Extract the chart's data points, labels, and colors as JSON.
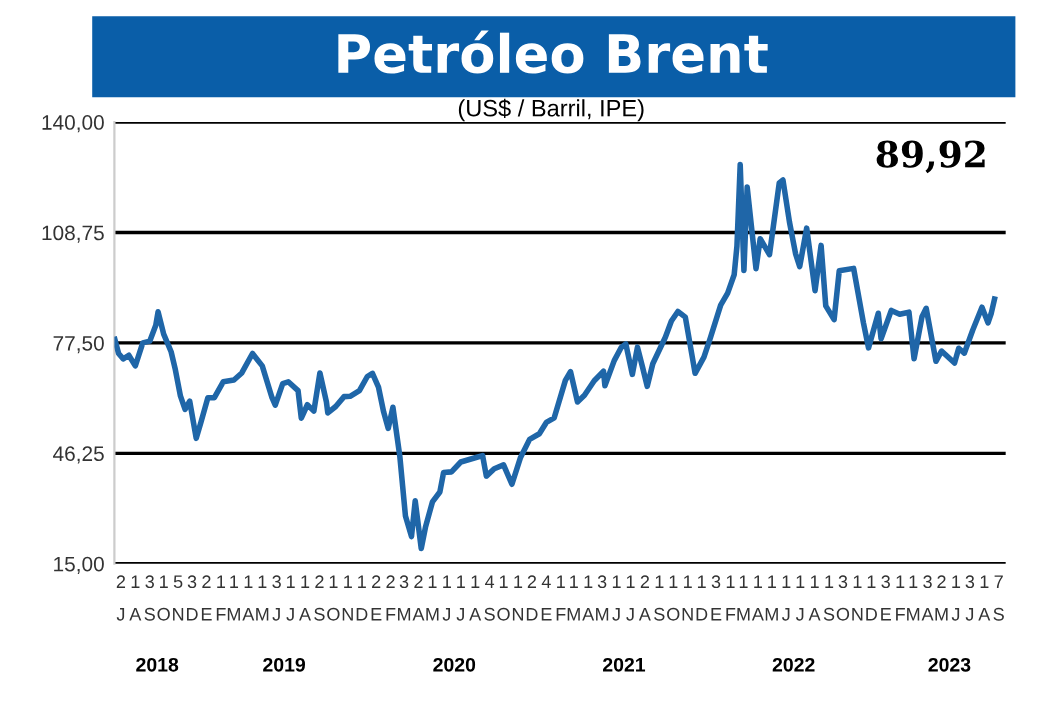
{
  "chart_data": {
    "type": "line",
    "title": "Petróleo Brent",
    "subtitle": "(US$ / Barril, IPE)",
    "annotations": [
      "89,92"
    ],
    "xlim": [
      "2018-07-01",
      "2023-09-30"
    ],
    "ylim": [
      15,
      140
    ],
    "yticks": [
      {
        "value": 15,
        "label": "15,00"
      },
      {
        "value": 46.25,
        "label": "46,25"
      },
      {
        "value": 77.5,
        "label": "77,50"
      },
      {
        "value": 108.75,
        "label": "108,75"
      },
      {
        "value": 140,
        "label": "140,00"
      }
    ],
    "xticks": [
      {
        "value": "2018-07-15",
        "label": "2\nJ"
      },
      {
        "value": "2018-08-15",
        "label": "1\nA"
      },
      {
        "value": "2018-09-15",
        "label": "3\nS"
      },
      {
        "value": "2018-10-15",
        "label": "1\nO"
      },
      {
        "value": "2018-11-15",
        "label": "5\nN"
      },
      {
        "value": "2018-12-15",
        "label": "3\nD"
      },
      {
        "value": "2019-01-15",
        "label": "2\nE"
      },
      {
        "value": "2019-02-15",
        "label": "1\nF"
      },
      {
        "value": "2019-03-15",
        "label": "1\nM"
      },
      {
        "value": "2019-04-15",
        "label": "1\nA"
      },
      {
        "value": "2019-05-15",
        "label": "1\nM"
      },
      {
        "value": "2019-06-15",
        "label": "3\nJ"
      },
      {
        "value": "2019-07-15",
        "label": "1\nJ"
      },
      {
        "value": "2019-08-15",
        "label": "1\nA"
      },
      {
        "value": "2019-09-15",
        "label": "2\nS"
      },
      {
        "value": "2019-10-15",
        "label": "1\nO"
      },
      {
        "value": "2019-11-15",
        "label": "1\nN"
      },
      {
        "value": "2019-12-15",
        "label": "1\nD"
      },
      {
        "value": "2020-01-15",
        "label": "2\nE"
      },
      {
        "value": "2020-02-15",
        "label": "2\nF"
      },
      {
        "value": "2020-03-15",
        "label": "3\nM"
      },
      {
        "value": "2020-04-15",
        "label": "2\nA"
      },
      {
        "value": "2020-05-15",
        "label": "1\nM"
      },
      {
        "value": "2020-06-15",
        "label": "1\nJ"
      },
      {
        "value": "2020-07-15",
        "label": "1\nJ"
      },
      {
        "value": "2020-08-15",
        "label": "1\nA"
      },
      {
        "value": "2020-09-15",
        "label": "4\nS"
      },
      {
        "value": "2020-10-15",
        "label": "1\nO"
      },
      {
        "value": "2020-11-15",
        "label": "1\nN"
      },
      {
        "value": "2020-12-15",
        "label": "2\nD"
      },
      {
        "value": "2021-01-15",
        "label": "4\nE"
      },
      {
        "value": "2021-02-15",
        "label": "1\nF"
      },
      {
        "value": "2021-03-15",
        "label": "1\nM"
      },
      {
        "value": "2021-04-15",
        "label": "1\nA"
      },
      {
        "value": "2021-05-15",
        "label": "3\nM"
      },
      {
        "value": "2021-06-15",
        "label": "1\nJ"
      },
      {
        "value": "2021-07-15",
        "label": "1\nJ"
      },
      {
        "value": "2021-08-15",
        "label": "2\nA"
      },
      {
        "value": "2021-09-15",
        "label": "1\nS"
      },
      {
        "value": "2021-10-15",
        "label": "1\nO"
      },
      {
        "value": "2021-11-15",
        "label": "1\nN"
      },
      {
        "value": "2021-12-15",
        "label": "1\nD"
      },
      {
        "value": "2022-01-15",
        "label": "3\nE"
      },
      {
        "value": "2022-02-15",
        "label": "1\nF"
      },
      {
        "value": "2022-03-15",
        "label": "1\nM"
      },
      {
        "value": "2022-04-15",
        "label": "1\nA"
      },
      {
        "value": "2022-05-15",
        "label": "1\nM"
      },
      {
        "value": "2022-06-15",
        "label": "1\nJ"
      },
      {
        "value": "2022-07-15",
        "label": "1\nJ"
      },
      {
        "value": "2022-08-15",
        "label": "1\nA"
      },
      {
        "value": "2022-09-15",
        "label": "1\nS"
      },
      {
        "value": "2022-10-15",
        "label": "3\nO"
      },
      {
        "value": "2022-11-15",
        "label": "1\nN"
      },
      {
        "value": "2022-12-15",
        "label": "1\nD"
      },
      {
        "value": "2023-01-15",
        "label": "3\nE"
      },
      {
        "value": "2023-02-15",
        "label": "1\nF"
      },
      {
        "value": "2023-03-15",
        "label": "1\nM"
      },
      {
        "value": "2023-04-15",
        "label": "3\nA"
      },
      {
        "value": "2023-05-15",
        "label": "2\nM"
      },
      {
        "value": "2023-06-15",
        "label": "1\nJ"
      },
      {
        "value": "2023-07-15",
        "label": "3\nJ"
      },
      {
        "value": "2023-08-15",
        "label": "1\nA"
      },
      {
        "value": "2023-09-15",
        "label": "7\nS"
      }
    ],
    "x2ticks": [
      {
        "value": "2018-10-01",
        "label": "2018"
      },
      {
        "value": "2019-07-01",
        "label": "2019"
      },
      {
        "value": "2020-07-01",
        "label": "2020"
      },
      {
        "value": "2021-07-01",
        "label": "2021"
      },
      {
        "value": "2022-07-01",
        "label": "2022"
      },
      {
        "value": "2023-06-01",
        "label": "2023"
      }
    ],
    "x2lim": [
      "2018-07-01",
      "2023-09-30"
    ],
    "grid": "y",
    "marker": "none",
    "line_style": "solid",
    "series": [
      {
        "color": "#1f66a8",
        "x": [
          "2018-07-02",
          "2018-07-10",
          "2018-07-20",
          "2018-08-01",
          "2018-08-15",
          "2018-08-31",
          "2018-09-15",
          "2018-09-28",
          "2018-10-03",
          "2018-10-15",
          "2018-10-31",
          "2018-11-09",
          "2018-11-20",
          "2018-11-30",
          "2018-12-10",
          "2018-12-24",
          "2019-01-03",
          "2019-01-18",
          "2019-02-01",
          "2019-02-20",
          "2019-03-15",
          "2019-04-01",
          "2019-04-24",
          "2019-05-15",
          "2019-06-05",
          "2019-06-12",
          "2019-06-28",
          "2019-07-10",
          "2019-07-31",
          "2019-08-07",
          "2019-08-20",
          "2019-09-03",
          "2019-09-16",
          "2019-09-30",
          "2019-10-03",
          "2019-10-20",
          "2019-11-07",
          "2019-11-20",
          "2019-12-10",
          "2019-12-27",
          "2020-01-07",
          "2020-01-20",
          "2020-01-31",
          "2020-02-10",
          "2020-02-20",
          "2020-03-06",
          "2020-03-18",
          "2020-03-31",
          "2020-04-08",
          "2020-04-21",
          "2020-04-30",
          "2020-05-15",
          "2020-05-31",
          "2020-06-08",
          "2020-06-25",
          "2020-07-15",
          "2020-08-15",
          "2020-08-31",
          "2020-09-08",
          "2020-09-25",
          "2020-10-15",
          "2020-11-02",
          "2020-11-20",
          "2020-12-10",
          "2020-12-31",
          "2021-01-15",
          "2021-02-01",
          "2021-02-25",
          "2021-03-08",
          "2021-03-23",
          "2021-04-07",
          "2021-04-28",
          "2021-05-18",
          "2021-05-21",
          "2021-06-10",
          "2021-06-25",
          "2021-07-05",
          "2021-07-19",
          "2021-07-30",
          "2021-08-10",
          "2021-08-20",
          "2021-09-01",
          "2021-09-28",
          "2021-10-11",
          "2021-10-25",
          "2021-11-10",
          "2021-11-26",
          "2021-12-01",
          "2021-12-20",
          "2022-01-03",
          "2022-01-25",
          "2022-02-09",
          "2022-02-23",
          "2022-03-01",
          "2022-03-08",
          "2022-03-16",
          "2022-03-23",
          "2022-04-11",
          "2022-04-20",
          "2022-05-10",
          "2022-05-31",
          "2022-06-08",
          "2022-06-22",
          "2022-07-05",
          "2022-07-14",
          "2022-07-29",
          "2022-08-16",
          "2022-08-29",
          "2022-09-08",
          "2022-09-26",
          "2022-10-07",
          "2022-11-07",
          "2022-11-28",
          "2022-12-09",
          "2022-12-30",
          "2023-01-05",
          "2023-01-27",
          "2023-02-14",
          "2023-03-06",
          "2023-03-17",
          "2023-04-03",
          "2023-04-12",
          "2023-05-03",
          "2023-05-15",
          "2023-06-12",
          "2023-06-21",
          "2023-07-03",
          "2023-07-21",
          "2023-08-10",
          "2023-08-23",
          "2023-08-30",
          "2023-09-06"
        ],
        "values": [
          78.5,
          74.5,
          73,
          74,
          71,
          77.5,
          78,
          82.5,
          86.3,
          80,
          75,
          70,
          62.5,
          58.7,
          61,
          50.5,
          55,
          62,
          62,
          66.5,
          67,
          69,
          74.5,
          71,
          62,
          59.9,
          66,
          66.5,
          64,
          56.2,
          60,
          58.2,
          69,
          60.8,
          57.7,
          59.5,
          62.3,
          62.4,
          64,
          68,
          68.9,
          65,
          58,
          53.3,
          59.3,
          45.3,
          28.5,
          22.7,
          32.8,
          19.3,
          25.3,
          32.5,
          35.3,
          40.8,
          41,
          43.8,
          45,
          45.6,
          39.8,
          41.9,
          43,
          37.5,
          44.9,
          50.2,
          51.8,
          55,
          56.3,
          66.9,
          69.4,
          60.8,
          62.7,
          66.8,
          69.5,
          65.4,
          72.5,
          76.2,
          77.2,
          68.6,
          76.3,
          70.6,
          65.2,
          71.6,
          79.1,
          83.7,
          86.4,
          84.8,
          72.7,
          68.9,
          73.5,
          79,
          88.2,
          91.6,
          96.8,
          104.9,
          128,
          98,
          121.6,
          98.5,
          107,
          102.5,
          122.8,
          123.6,
          111.7,
          102.8,
          99.1,
          110,
          92.3,
          105.1,
          88,
          84.1,
          97.9,
          98.6,
          83.2,
          76.1,
          85.9,
          78.7,
          86.7,
          85.6,
          86.2,
          73,
          84.9,
          87.3,
          72.3,
          75.2,
          71.8,
          76,
          74.6,
          81.1,
          87.6,
          83.2,
          85.9,
          89.92
        ]
      }
    ]
  }
}
